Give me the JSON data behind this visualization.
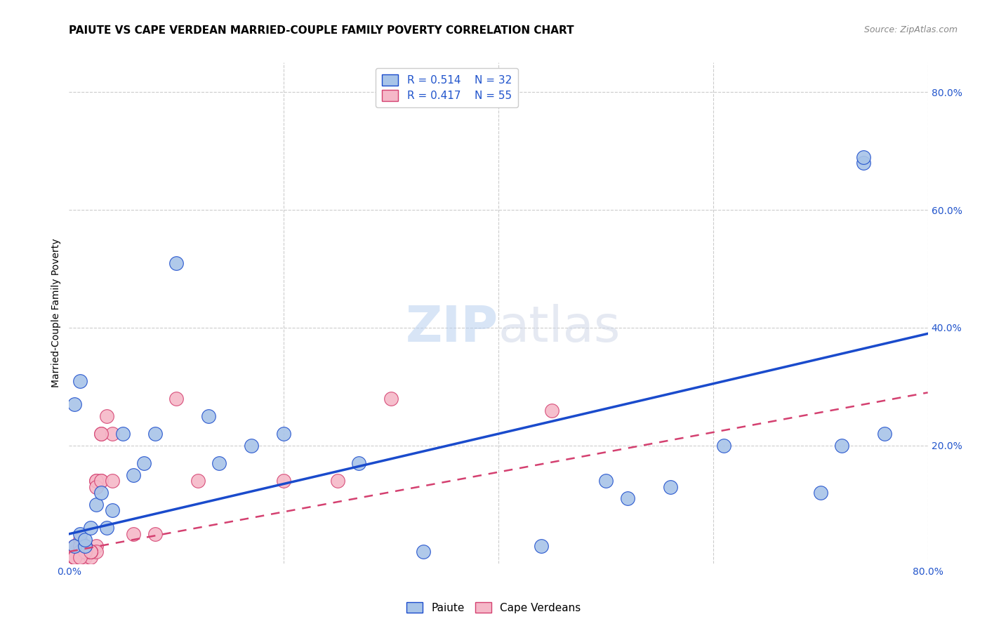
{
  "title": "PAIUTE VS CAPE VERDEAN MARRIED-COUPLE FAMILY POVERTY CORRELATION CHART",
  "source": "Source: ZipAtlas.com",
  "ylabel": "Married-Couple Family Poverty",
  "xlim": [
    0.0,
    0.8
  ],
  "ylim": [
    0.0,
    0.85
  ],
  "watermark_zip": "ZIP",
  "watermark_atlas": "atlas",
  "paiute_R": "0.514",
  "paiute_N": "32",
  "cape_R": "0.417",
  "cape_N": "55",
  "paiute_color": "#a8c4e8",
  "cape_color": "#f5b8c8",
  "paiute_line_color": "#1a4bcc",
  "cape_line_color": "#d44070",
  "legend_label_paiute": "Paiute",
  "legend_label_cape": "Cape Verdeans",
  "background_color": "#ffffff",
  "grid_color": "#cccccc",
  "paiute_scatter_x": [
    0.005,
    0.01,
    0.015,
    0.005,
    0.01,
    0.015,
    0.02,
    0.025,
    0.03,
    0.035,
    0.04,
    0.05,
    0.06,
    0.07,
    0.08,
    0.1,
    0.13,
    0.14,
    0.17,
    0.2,
    0.27,
    0.33,
    0.44,
    0.5,
    0.52,
    0.56,
    0.61,
    0.7,
    0.72,
    0.74,
    0.74,
    0.76
  ],
  "paiute_scatter_y": [
    0.03,
    0.05,
    0.03,
    0.27,
    0.31,
    0.04,
    0.06,
    0.1,
    0.12,
    0.06,
    0.09,
    0.22,
    0.15,
    0.17,
    0.22,
    0.51,
    0.25,
    0.17,
    0.2,
    0.22,
    0.17,
    0.02,
    0.03,
    0.14,
    0.11,
    0.13,
    0.2,
    0.12,
    0.2,
    0.68,
    0.69,
    0.22
  ],
  "cape_scatter_x": [
    0.005,
    0.01,
    0.015,
    0.02,
    0.005,
    0.01,
    0.015,
    0.02,
    0.025,
    0.005,
    0.01,
    0.015,
    0.03,
    0.005,
    0.01,
    0.02,
    0.04,
    0.005,
    0.015,
    0.025,
    0.005,
    0.01,
    0.02,
    0.005,
    0.03,
    0.035,
    0.005,
    0.015,
    0.005,
    0.02,
    0.005,
    0.015,
    0.025,
    0.005,
    0.02,
    0.005,
    0.03,
    0.015,
    0.005,
    0.025,
    0.005,
    0.015,
    0.025,
    0.01,
    0.02,
    0.03,
    0.04,
    0.06,
    0.08,
    0.1,
    0.12,
    0.2,
    0.25,
    0.3,
    0.45
  ],
  "cape_scatter_y": [
    0.02,
    0.03,
    0.01,
    0.02,
    0.03,
    0.04,
    0.02,
    0.02,
    0.03,
    0.01,
    0.02,
    0.02,
    0.22,
    0.01,
    0.03,
    0.01,
    0.22,
    0.01,
    0.03,
    0.02,
    0.01,
    0.02,
    0.02,
    0.01,
    0.22,
    0.25,
    0.01,
    0.02,
    0.01,
    0.02,
    0.01,
    0.03,
    0.14,
    0.01,
    0.02,
    0.01,
    0.14,
    0.02,
    0.01,
    0.14,
    0.01,
    0.02,
    0.13,
    0.01,
    0.02,
    0.14,
    0.14,
    0.05,
    0.05,
    0.28,
    0.14,
    0.14,
    0.14,
    0.28,
    0.26
  ],
  "paiute_line_x": [
    0.0,
    0.8
  ],
  "paiute_line_y": [
    0.05,
    0.39
  ],
  "cape_line_x": [
    0.0,
    0.8
  ],
  "cape_line_y": [
    0.02,
    0.29
  ],
  "title_fontsize": 11,
  "axis_label_fontsize": 10,
  "tick_fontsize": 10,
  "legend_fontsize": 11,
  "watermark_fontsize": 52
}
